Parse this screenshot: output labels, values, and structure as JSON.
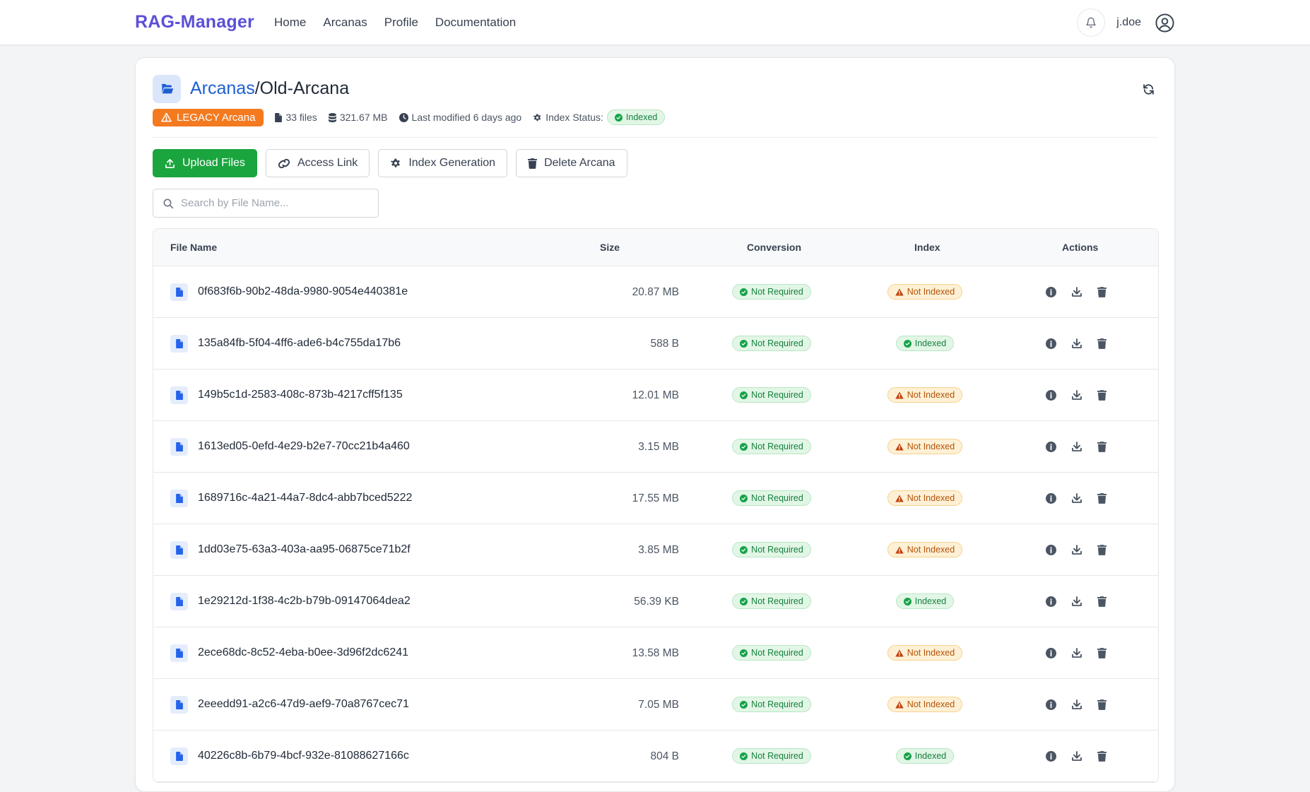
{
  "nav": {
    "brand": "RAG-Manager",
    "links": [
      "Home",
      "Arcanas",
      "Profile",
      "Documentation"
    ],
    "username": "j.doe"
  },
  "header": {
    "breadcrumb_link": "Arcanas",
    "separator": "/",
    "current": "Old-Arcana"
  },
  "meta": {
    "legacy_label": "LEGACY Arcana",
    "files_count": "33 files",
    "total_size": "321.67 MB",
    "last_modified": "Last modified 6 days ago",
    "index_status_label": "Index Status:",
    "index_status_value": "Indexed"
  },
  "actions": {
    "upload": "Upload Files",
    "access": "Access Link",
    "index_gen": "Index Generation",
    "delete": "Delete Arcana"
  },
  "search": {
    "placeholder": "Search by File Name..."
  },
  "table": {
    "columns": {
      "name": "File Name",
      "size": "Size",
      "conversion": "Conversion",
      "index": "Index",
      "actions": "Actions"
    },
    "rows": [
      {
        "name": "0f683f6b-90b2-48da-9980-9054e440381e",
        "size": "20.87 MB",
        "conversion": "Not Required",
        "index": "Not Indexed",
        "indexed": false
      },
      {
        "name": "135a84fb-5f04-4ff6-ade6-b4c755da17b6",
        "size": "588 B",
        "conversion": "Not Required",
        "index": "Indexed",
        "indexed": true
      },
      {
        "name": "149b5c1d-2583-408c-873b-4217cff5f135",
        "size": "12.01 MB",
        "conversion": "Not Required",
        "index": "Not Indexed",
        "indexed": false
      },
      {
        "name": "1613ed05-0efd-4e29-b2e7-70cc21b4a460",
        "size": "3.15 MB",
        "conversion": "Not Required",
        "index": "Not Indexed",
        "indexed": false
      },
      {
        "name": "1689716c-4a21-44a7-8dc4-abb7bced5222",
        "size": "17.55 MB",
        "conversion": "Not Required",
        "index": "Not Indexed",
        "indexed": false
      },
      {
        "name": "1dd03e75-63a3-403a-aa95-06875ce71b2f",
        "size": "3.85 MB",
        "conversion": "Not Required",
        "index": "Not Indexed",
        "indexed": false
      },
      {
        "name": "1e29212d-1f38-4c2b-b79b-09147064dea2",
        "size": "56.39 KB",
        "conversion": "Not Required",
        "index": "Indexed",
        "indexed": true
      },
      {
        "name": "2ece68dc-8c52-4eba-b0ee-3d96f2dc6241",
        "size": "13.58 MB",
        "conversion": "Not Required",
        "index": "Not Indexed",
        "indexed": false
      },
      {
        "name": "2eeedd91-a2c6-47d9-aef9-70a8767cec71",
        "size": "7.05 MB",
        "conversion": "Not Required",
        "index": "Not Indexed",
        "indexed": false
      },
      {
        "name": "40226c8b-6b79-4bcf-932e-81088627166c",
        "size": "804 B",
        "conversion": "Not Required",
        "index": "Indexed",
        "indexed": true
      }
    ]
  },
  "colors": {
    "brand": "#5b4fd6",
    "link": "#1d5fd3",
    "legacy": "#f47a20",
    "primary_button": "#1aa53e",
    "status_green": "#15803d",
    "status_orange": "#b45309"
  },
  "icons": {
    "nav_bell": "bell-icon",
    "nav_user": "user-circle-icon",
    "header_folder": "folder-open-icon",
    "header_refresh": "refresh-icon",
    "row_file": "file-icon",
    "row_actions": [
      "info-icon",
      "download-icon",
      "trash-icon"
    ]
  }
}
